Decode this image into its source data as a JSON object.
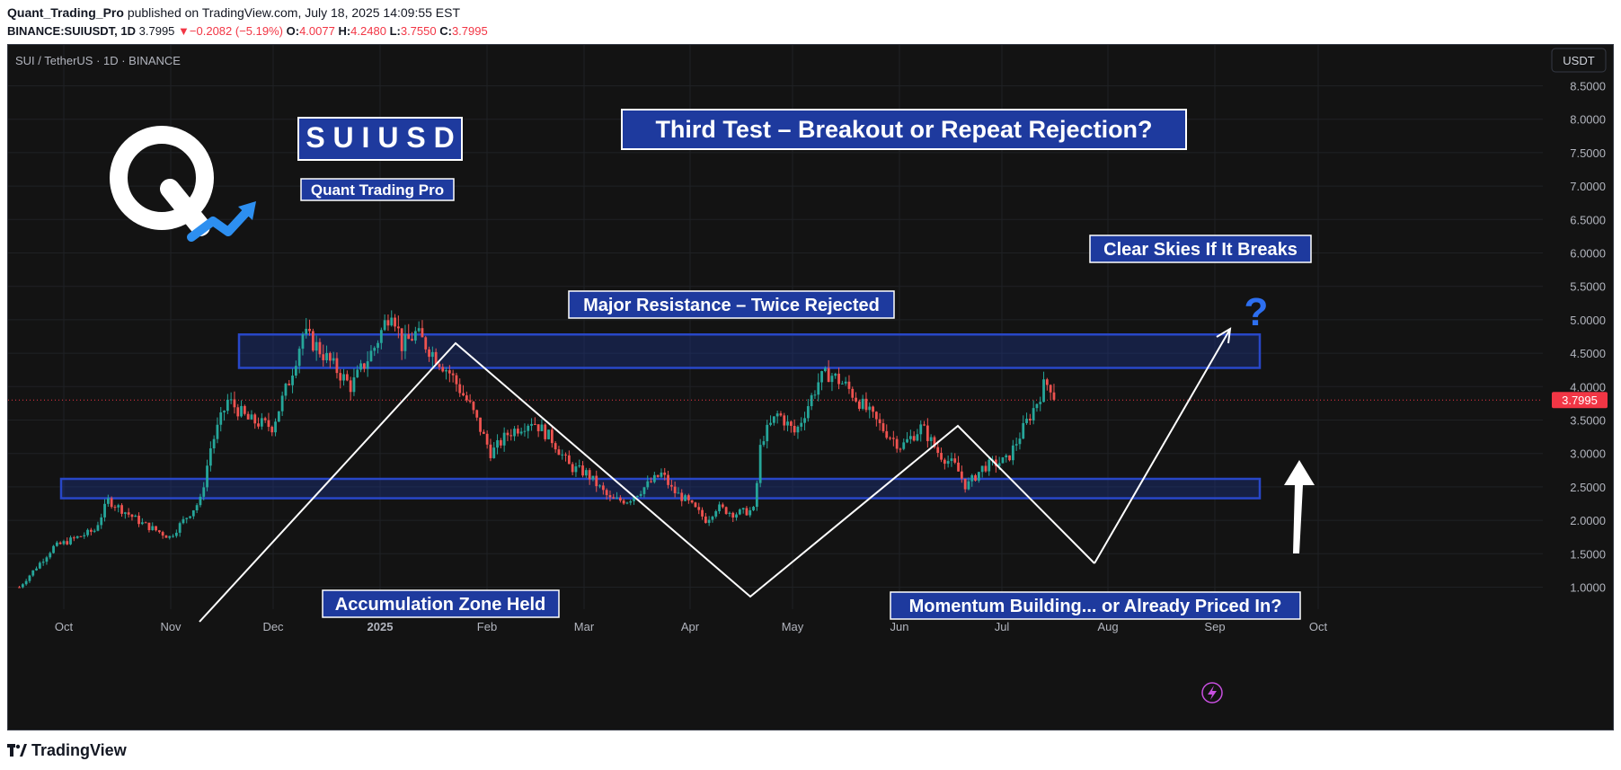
{
  "header": {
    "author": "Quant_Trading_Pro",
    "published_text": "published on TradingView.com, July 18, 2025 14:09:55 EST",
    "symbol_line": "BINANCE:SUIUSDT, 1D",
    "last": "3.7995",
    "change": "−0.2082 (−5.19%)",
    "o_label": "O:",
    "o": "4.0077",
    "h_label": "H:",
    "h": "4.2480",
    "l_label": "L:",
    "l": "3.7550",
    "c_label": "C:",
    "c": "3.7995"
  },
  "pane_title": "SUI / TetherUS · 1D · BINANCE",
  "currency_button": "USDT",
  "logo_letter": "Q",
  "colors": {
    "up": "#26a69a",
    "down": "#ef5350",
    "annotation_bg": "#1e3a9e",
    "zone": "#1e3a9e",
    "price_tag": "#f23645"
  },
  "annotations": {
    "ticker": "S U I U S D",
    "brand": "Quant Trading Pro",
    "headline": "Third Test – Breakout or Repeat Rejection?",
    "clear_skies": "Clear Skies If It Breaks",
    "resistance": "Major Resistance – Twice Rejected",
    "accumulation": "Accumulation Zone Held",
    "momentum": "Momentum Building... or Already Priced In?",
    "question": "?"
  },
  "footer": {
    "brand": "TradingView"
  },
  "chart_data": {
    "type": "candlestick",
    "interval": "1D",
    "x_ticks": [
      "Oct",
      "Nov",
      "Dec",
      "2025",
      "Feb",
      "Mar",
      "Apr",
      "May",
      "Jun",
      "Jul",
      "Aug",
      "Sep",
      "Oct"
    ],
    "y_ticks": [
      "1.0000",
      "1.5000",
      "2.0000",
      "2.5000",
      "3.0000",
      "3.5000",
      "4.0000",
      "4.5000",
      "5.0000",
      "5.5000",
      "6.0000",
      "6.5000",
      "7.0000",
      "7.5000",
      "8.0000",
      "8.5000"
    ],
    "ylim": [
      0.6,
      9.0
    ],
    "last_price": "3.7995",
    "grid": true,
    "resistance_zone": [
      4.28,
      4.78
    ],
    "support_zone": [
      2.33,
      2.62
    ],
    "close_path": [
      [
        "2024-09-18",
        1.0
      ],
      [
        "2024-09-28",
        1.6
      ],
      [
        "2024-10-10",
        1.85
      ],
      [
        "2024-10-14",
        2.3
      ],
      [
        "2024-10-24",
        1.95
      ],
      [
        "2024-11-01",
        1.75
      ],
      [
        "2024-11-10",
        2.3
      ],
      [
        "2024-11-13",
        3.1
      ],
      [
        "2024-11-18",
        3.8
      ],
      [
        "2024-11-24",
        3.5
      ],
      [
        "2024-12-01",
        3.4
      ],
      [
        "2024-12-06",
        4.1
      ],
      [
        "2024-12-10",
        4.8
      ],
      [
        "2024-12-14",
        4.6
      ],
      [
        "2024-12-19",
        4.3
      ],
      [
        "2024-12-24",
        4.0
      ],
      [
        "2024-12-31",
        4.6
      ],
      [
        "2025-01-05",
        5.2
      ],
      [
        "2025-01-08",
        4.6
      ],
      [
        "2025-01-12",
        4.8
      ],
      [
        "2025-01-17",
        4.5
      ],
      [
        "2025-01-22",
        4.2
      ],
      [
        "2025-01-28",
        3.7
      ],
      [
        "2025-02-03",
        3.0
      ],
      [
        "2025-02-08",
        3.3
      ],
      [
        "2025-02-15",
        3.5
      ],
      [
        "2025-02-21",
        3.2
      ],
      [
        "2025-02-26",
        2.8
      ],
      [
        "2025-03-03",
        2.7
      ],
      [
        "2025-03-10",
        2.3
      ],
      [
        "2025-03-15",
        2.3
      ],
      [
        "2025-03-20",
        2.5
      ],
      [
        "2025-03-25",
        2.7
      ],
      [
        "2025-03-28",
        2.45
      ],
      [
        "2025-04-01",
        2.3
      ],
      [
        "2025-04-07",
        2.0
      ],
      [
        "2025-04-10",
        2.2
      ],
      [
        "2025-04-15",
        2.1
      ],
      [
        "2025-04-21",
        2.15
      ],
      [
        "2025-04-23",
        3.2
      ],
      [
        "2025-04-28",
        3.6
      ],
      [
        "2025-05-03",
        3.3
      ],
      [
        "2025-05-10",
        4.1
      ],
      [
        "2025-05-13",
        4.2
      ],
      [
        "2025-05-18",
        4.0
      ],
      [
        "2025-05-23",
        3.7
      ],
      [
        "2025-05-28",
        3.4
      ],
      [
        "2025-06-03",
        3.1
      ],
      [
        "2025-06-09",
        3.4
      ],
      [
        "2025-06-14",
        3.0
      ],
      [
        "2025-06-19",
        2.8
      ],
      [
        "2025-06-22",
        2.5
      ],
      [
        "2025-06-27",
        2.8
      ],
      [
        "2025-07-04",
        2.9
      ],
      [
        "2025-07-09",
        3.4
      ],
      [
        "2025-07-13",
        3.8
      ],
      [
        "2025-07-15",
        4.05
      ],
      [
        "2025-07-17",
        4.0
      ],
      [
        "2025-07-18",
        3.8
      ]
    ]
  }
}
